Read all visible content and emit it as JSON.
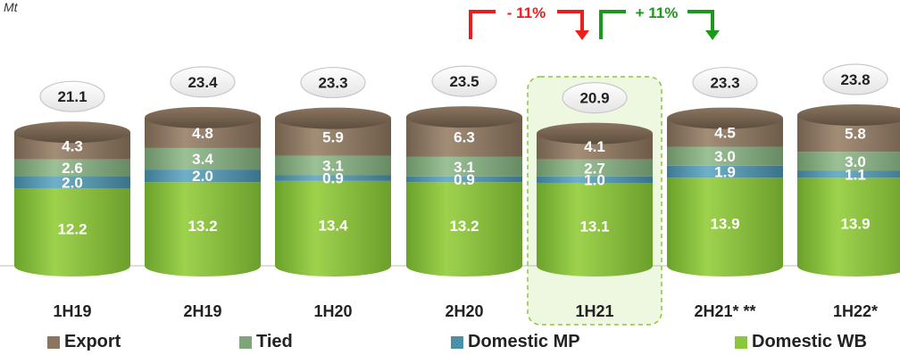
{
  "unit_label": "Mt",
  "chart_data": {
    "type": "bar",
    "stacked": true,
    "categories": [
      "1H19",
      "2H19",
      "1H20",
      "2H20",
      "1H21",
      "2H21* **",
      "1H22*"
    ],
    "highlight_category": "1H21",
    "series": [
      {
        "name": "Domestic WB",
        "values": [
          12.2,
          13.2,
          13.4,
          13.2,
          13.1,
          13.9,
          13.9
        ],
        "color": "#8cc63f"
      },
      {
        "name": "Domestic MP",
        "values": [
          2.0,
          2.0,
          0.9,
          0.9,
          1.0,
          1.9,
          1.1
        ],
        "color": "#4a90a8"
      },
      {
        "name": "Tied",
        "values": [
          2.6,
          3.4,
          3.1,
          3.1,
          2.7,
          3.0,
          3.0
        ],
        "color": "#7fa67a"
      },
      {
        "name": "Export",
        "values": [
          4.3,
          4.8,
          5.9,
          6.3,
          4.1,
          4.5,
          5.8
        ],
        "color": "#8a7560"
      }
    ],
    "totals": [
      21.1,
      23.4,
      23.3,
      23.5,
      20.9,
      23.3,
      23.8
    ],
    "annotations": [
      {
        "text": "- 11%",
        "from": "2H20",
        "to": "1H21",
        "color": "#ee1c1c"
      },
      {
        "text": "+ 11%",
        "from": "1H21",
        "to": "2H21* **",
        "color": "#1a9a1a"
      }
    ],
    "legend_position": "bottom",
    "grid": false
  }
}
